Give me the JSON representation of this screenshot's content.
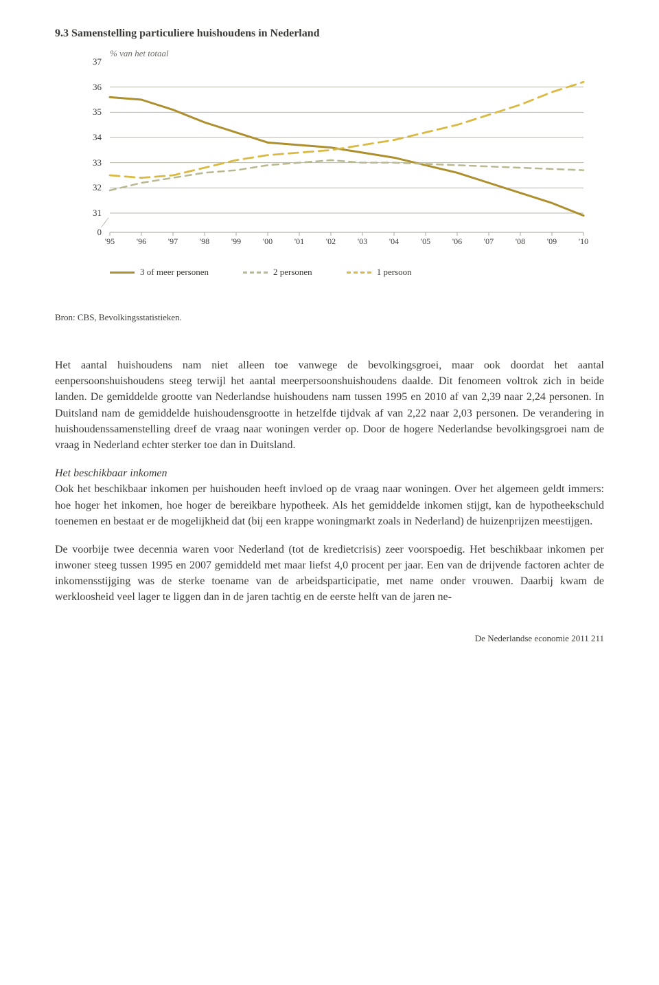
{
  "figure": {
    "number_title": "9.3  Samenstelling particuliere huishoudens in Nederland",
    "y_subtitle": "% van het totaal",
    "type": "line",
    "background_color": "#ffffff",
    "grid_color": "#b7b6a9",
    "axis_color": "#a7a699",
    "text_color": "#3a3a38",
    "title_fontsize": 16,
    "label_fontsize": 13,
    "xlabels": [
      "'95",
      "'96",
      "'97",
      "'98",
      "'99",
      "'00",
      "'01",
      "'02",
      "'03",
      "'04",
      "'05",
      "'06",
      "'07",
      "'08",
      "'09",
      "'10"
    ],
    "ylim": [
      31,
      37
    ],
    "ytick_step": 1,
    "yticks": [
      37,
      36,
      35,
      34,
      33,
      32,
      31,
      0
    ],
    "series": [
      {
        "name": "3 of meer personen",
        "color": "#ad8f2e",
        "style": "solid",
        "width": 3,
        "values": [
          35.6,
          35.5,
          35.1,
          34.6,
          34.2,
          33.8,
          33.7,
          33.6,
          33.4,
          33.2,
          32.9,
          32.6,
          32.2,
          31.8,
          31.4,
          30.9
        ]
      },
      {
        "name": "2 personen",
        "color": "#b9b890",
        "style": "short-dash",
        "width": 2.5,
        "values": [
          31.9,
          32.2,
          32.4,
          32.6,
          32.7,
          32.9,
          33.0,
          33.1,
          33.0,
          33.0,
          32.95,
          32.9,
          32.85,
          32.8,
          32.75,
          32.7
        ]
      },
      {
        "name": "1 persoon",
        "color": "#d9b942",
        "style": "long-dash",
        "width": 2.8,
        "values": [
          32.5,
          32.4,
          32.5,
          32.8,
          33.1,
          33.3,
          33.4,
          33.5,
          33.7,
          33.9,
          34.2,
          34.5,
          34.9,
          35.3,
          35.8,
          36.2
        ]
      }
    ]
  },
  "legend": {
    "items": [
      {
        "label": "3 of meer personen",
        "color": "#ad8f2e",
        "style": "solid"
      },
      {
        "label": "2 personen",
        "color": "#b9b890",
        "style": "short-dash"
      },
      {
        "label": "1 persoon",
        "color": "#d9b942",
        "style": "long-dash"
      }
    ]
  },
  "source_line": "Bron: CBS, Bevolkingsstatistieken.",
  "paragraphs": {
    "p1": "Het aantal huishoudens nam niet alleen toe vanwege de bevolkingsgroei, maar ook doordat het aantal eenpersoonshuishoudens steeg terwijl het aantal meerpersoonshuishoudens daalde. Dit fenomeen voltrok zich in beide landen. De gemiddelde grootte van Nederlandse huishoudens nam tussen 1995 en 2010 af van 2,39 naar 2,24 personen. In Duitsland nam de gemiddelde huishoudensgrootte in hetzelfde tijdvak af van 2,22 naar 2,03 personen. De verandering in huishoudenssamenstelling dreef de vraag naar woningen verder op. Door de hogere Nederlandse bevolkingsgroei nam de vraag in Nederland echter sterker toe dan in Duitsland.",
    "subhead": "Het beschikbaar inkomen",
    "p2": "Ook het beschikbaar inkomen per huishouden heeft invloed op de vraag naar woningen. Over het algemeen geldt immers: hoe hoger het inkomen, hoe hoger de bereikbare hypotheek. Als het gemiddelde inkomen stijgt, kan de hypotheekschuld toenemen en bestaat er de mogelijkheid dat (bij een krappe woningmarkt zoals in Nederland) de huizenprijzen meestijgen.",
    "p3": "De voorbije twee decennia waren voor Nederland (tot de kredietcrisis) zeer voorspoedig. Het beschikbaar inkomen per inwoner steeg tussen 1995 en 2007 gemiddeld met maar liefst 4,0 procent per jaar. Een van de drijvende factoren achter de inkomensstijging was de sterke toename van de arbeidsparticipatie, met name onder vrouwen. Daarbij kwam de werkloosheid veel lager te liggen dan in de jaren tachtig en de eerste helft van de jaren ne-"
  },
  "footer_text": "De Nederlandse economie 2011    211"
}
